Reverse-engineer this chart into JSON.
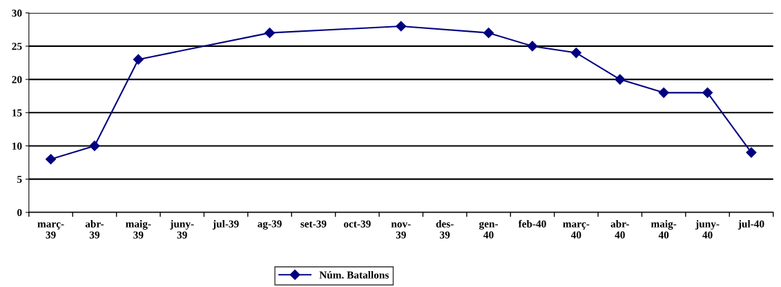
{
  "chart_data": {
    "type": "line",
    "categories": [
      "març-\n39",
      "abr-\n39",
      "maig-\n39",
      "juny-\n39",
      "jul-39",
      "ag-39",
      "set-39",
      "oct-39",
      "nov-\n39",
      "des-\n39",
      "gen-\n40",
      "feb-40",
      "març-\n40",
      "abr-\n40",
      "maig-\n40",
      "juny-\n40",
      "jul-40"
    ],
    "series": [
      {
        "name": "Núm. Batallons",
        "color": "#000080",
        "values": [
          8,
          10,
          23,
          null,
          null,
          27,
          null,
          null,
          28,
          null,
          27,
          25,
          24,
          20,
          18,
          18,
          9
        ]
      }
    ],
    "ylim": [
      0,
      30
    ],
    "yticks": [
      0,
      5,
      10,
      15,
      20,
      25,
      30
    ],
    "grid": "y",
    "legend": "bottom",
    "marker": "diamond",
    "line_style": "solid"
  }
}
